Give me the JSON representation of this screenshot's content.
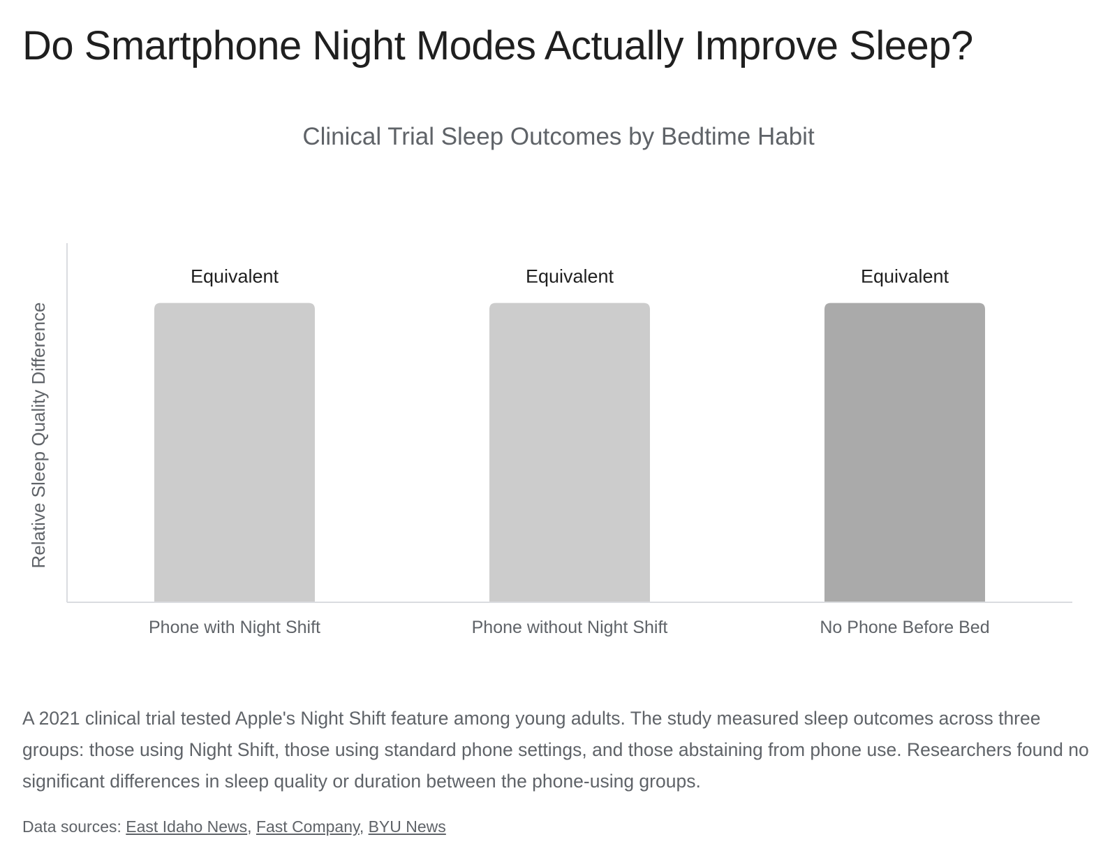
{
  "page": {
    "title": "Do Smartphone Night Modes Actually Improve Sleep?",
    "description": "A 2021 clinical trial tested Apple's Night Shift feature among young adults. The study measured sleep outcomes across three groups: those using Night Shift, those using standard phone settings, and those abstaining from phone use. Researchers found no significant differences in sleep quality or duration between the phone-using groups.",
    "sources": {
      "prefix": "Data sources: ",
      "links": [
        {
          "label": "East Idaho News"
        },
        {
          "label": "Fast Company"
        },
        {
          "label": "BYU News"
        }
      ],
      "separator": ", "
    }
  },
  "chart_data": {
    "type": "bar",
    "title": "Clinical Trial Sleep Outcomes by Bedtime Habit",
    "xlabel": "",
    "ylabel": "Relative Sleep Quality Difference",
    "categories": [
      "Phone with Night Shift",
      "Phone without Night Shift",
      "No Phone Before Bed"
    ],
    "values": [
      1,
      1,
      1
    ],
    "data_labels": [
      "Equivalent",
      "Equivalent",
      "Equivalent"
    ],
    "ylim": [
      0,
      1.2
    ],
    "bar_colors": [
      "#cccccc",
      "#cccccc",
      "#aaaaaa"
    ],
    "label_color": "#1f1f1f",
    "tick_label_color": "#5f6368",
    "axis_color": "#dadce0",
    "grid": false,
    "legend": "none"
  }
}
